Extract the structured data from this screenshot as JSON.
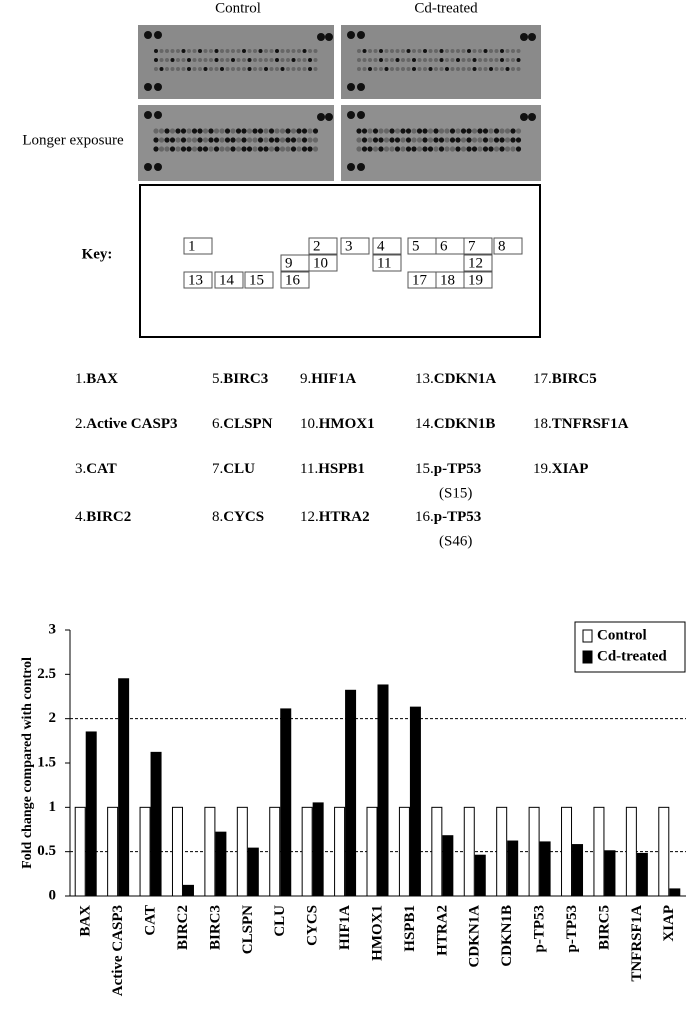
{
  "panels": {
    "control": "Control",
    "treated": "Cd-treated",
    "longer": "Longer exposure"
  },
  "key": {
    "label": "Key:",
    "cells": [
      "1",
      "2",
      "3",
      "4",
      "5",
      "6",
      "7",
      "8",
      "9",
      "10",
      "11",
      "12",
      "13",
      "14",
      "15",
      "16",
      "17",
      "18",
      "19"
    ]
  },
  "genes": [
    {
      "number": "1.",
      "name": "BAX"
    },
    {
      "number": "2.",
      "name": "Active CASP3"
    },
    {
      "number": "3.",
      "name": "CAT"
    },
    {
      "number": "4.",
      "name": "BIRC2"
    },
    {
      "number": "5.",
      "name": "BIRC3"
    },
    {
      "number": "6.",
      "name": "CLSPN"
    },
    {
      "number": "7.",
      "name": "CLU"
    },
    {
      "number": "8.",
      "name": "CYCS"
    },
    {
      "number": "9.",
      "name": "HIF1A"
    },
    {
      "number": "10.",
      "name": "HMOX1"
    },
    {
      "number": "11.",
      "name": "HSPB1"
    },
    {
      "number": "12.",
      "name": "HTRA2"
    },
    {
      "number": "13.",
      "name": "CDKN1A"
    },
    {
      "number": "14.",
      "name": "CDKN1B"
    },
    {
      "number": "15.",
      "name": "p-TP53",
      "note": "(S15)"
    },
    {
      "number": "16.",
      "name": "p-TP53",
      "note": "(S46)"
    },
    {
      "number": "17.",
      "name": "BIRC5"
    },
    {
      "number": "18.",
      "name": "TNFRSF1A"
    },
    {
      "number": "19.",
      "name": "XIAP"
    }
  ],
  "chart_data": {
    "type": "bar",
    "y_label": "Fold change compared with control",
    "categories": [
      "BAX",
      "Active CASP3",
      "CAT",
      "BIRC2",
      "BIRC3",
      "CLSPN",
      "CLU",
      "CYCS",
      "HIF1A",
      "HMOX1",
      "HSPB1",
      "HTRA2",
      "CDKN1A",
      "CDKN1B",
      "p-TP53",
      "p-TP53",
      "BIRC5",
      "TNFRSF1A",
      "XIAP"
    ],
    "series": [
      {
        "name": "Control",
        "color": "#ffffff",
        "values": [
          1,
          1,
          1,
          1,
          1,
          1,
          1,
          1,
          1,
          1,
          1,
          1,
          1,
          1,
          1,
          1,
          1,
          1,
          1
        ]
      },
      {
        "name": "Cd-treated",
        "color": "#000000",
        "values": [
          1.85,
          2.45,
          1.62,
          0.12,
          0.72,
          0.54,
          2.11,
          1.05,
          2.32,
          2.38,
          2.13,
          0.68,
          0.46,
          0.62,
          0.61,
          0.58,
          0.51,
          0.48,
          0.08
        ]
      }
    ],
    "ylim": [
      0,
      3
    ],
    "yticks": [
      0,
      0.5,
      1,
      1.5,
      2,
      2.5,
      3
    ],
    "reference_lines": [
      2,
      0.5
    ],
    "legend": "top-right"
  }
}
